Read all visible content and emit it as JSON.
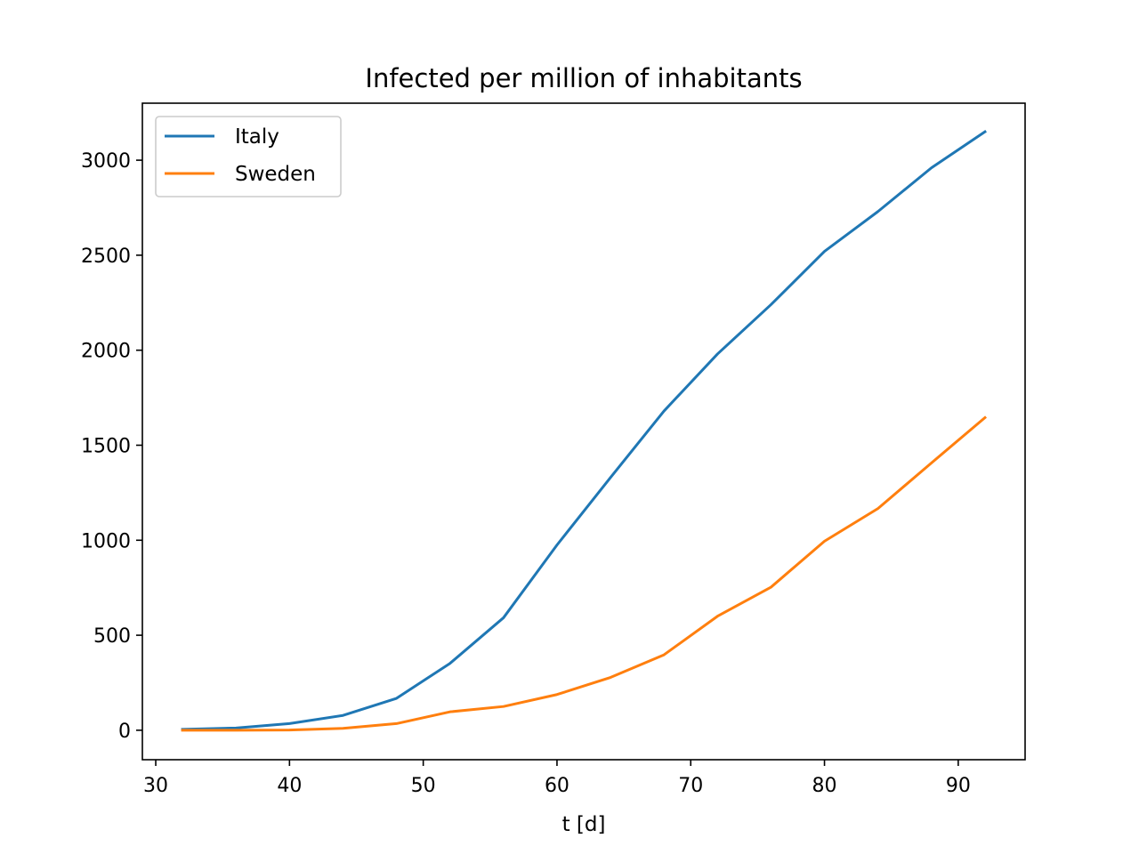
{
  "chart_data": {
    "type": "line",
    "title": "Infected per million of inhabitants",
    "xlabel": "t [d]",
    "ylabel": "",
    "xlim": [
      29,
      95
    ],
    "ylim": [
      -155,
      3300
    ],
    "xticks": [
      30,
      40,
      50,
      60,
      70,
      80,
      90
    ],
    "yticks": [
      0,
      500,
      1000,
      1500,
      2000,
      2500,
      3000
    ],
    "grid": false,
    "legend_position": "upper-left",
    "x": [
      32,
      36,
      40,
      44,
      48,
      52,
      56,
      60,
      64,
      68,
      72,
      76,
      80,
      84,
      88,
      92
    ],
    "series": [
      {
        "name": "Italy",
        "color": "#1f77b4",
        "values": [
          5,
          12,
          35,
          78,
          168,
          352,
          592,
          975,
          1330,
          1680,
          1980,
          2240,
          2520,
          2730,
          2960,
          3150
        ]
      },
      {
        "name": "Sweden",
        "color": "#ff7f0e",
        "values": [
          0,
          0,
          1,
          10,
          35,
          97,
          125,
          188,
          278,
          397,
          600,
          753,
          995,
          1167,
          1407,
          1645
        ]
      }
    ]
  }
}
